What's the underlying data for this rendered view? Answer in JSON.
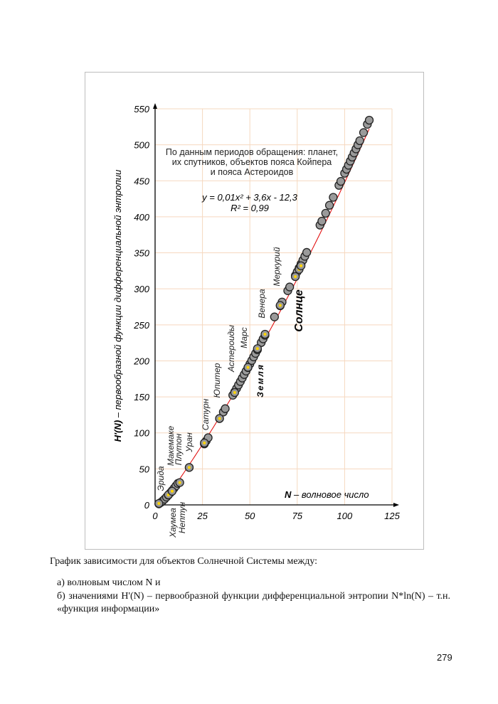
{
  "chart_data": {
    "type": "scatter",
    "title": "",
    "xlabel_bold": "N",
    "xlabel": " – волновое число",
    "ylabel_bold": "H'(N)",
    "ylabel": " – первообразной функции дифференциальной энтропии",
    "xlim": [
      0,
      125
    ],
    "ylim": [
      0,
      550
    ],
    "xticks": [
      0,
      25,
      50,
      75,
      100,
      125
    ],
    "yticks": [
      0,
      50,
      100,
      150,
      200,
      250,
      300,
      350,
      400,
      450,
      500,
      550
    ],
    "grid": true,
    "note_lines": [
      "По данным периодов обращения: планет,",
      "их спутников, объектов пояса Койпера",
      "и пояса Астероидов"
    ],
    "equation": "y = 0,01x² + 3,6x - 12,3",
    "r_squared": "R² = 0,99",
    "trendline": {
      "a": 0.01,
      "b": 3.6,
      "c": -12.3,
      "color": "#e00000"
    },
    "colors": {
      "point_fill": "#9a9a9a",
      "point_stroke": "#222222",
      "highlight": "#ffd400",
      "grid": "#f6d8bf"
    },
    "points": [
      [
        2,
        1.4
      ],
      [
        3,
        3.3
      ],
      [
        4,
        5.5
      ],
      [
        5,
        8.0
      ],
      [
        6,
        10.8
      ],
      [
        7,
        13.6
      ],
      [
        8,
        16.6
      ],
      [
        9,
        19.8
      ],
      [
        10,
        23.0
      ],
      [
        11,
        26.4
      ],
      [
        12,
        29.8
      ],
      [
        18,
        52.0
      ],
      [
        26,
        84.7
      ],
      [
        27,
        89.0
      ],
      [
        28,
        93.3
      ],
      [
        34,
        119.9
      ],
      [
        36,
        129.0
      ],
      [
        37,
        133.6
      ],
      [
        41,
        152.3
      ],
      [
        42,
        157.0
      ],
      [
        43,
        161.7
      ],
      [
        44,
        166.5
      ],
      [
        45,
        171.3
      ],
      [
        46,
        176.1
      ],
      [
        47,
        181.0
      ],
      [
        48,
        185.8
      ],
      [
        49,
        190.7
      ],
      [
        50,
        195.6
      ],
      [
        51,
        200.5
      ],
      [
        52,
        205.5
      ],
      [
        53,
        210.4
      ],
      [
        54,
        215.4
      ],
      [
        56,
        225.4
      ],
      [
        57,
        230.5
      ],
      [
        58,
        235.5
      ],
      [
        63,
        261.0
      ],
      [
        66,
        276.5
      ],
      [
        67,
        281.7
      ],
      [
        70,
        297.4
      ],
      [
        71,
        302.6
      ],
      [
        74,
        318.5
      ],
      [
        75,
        323.8
      ],
      [
        76,
        329.1
      ],
      [
        77,
        334.5
      ],
      [
        78,
        339.8
      ],
      [
        79,
        345.2
      ],
      [
        80,
        350.6
      ],
      [
        87,
        388.5
      ],
      [
        88,
        394.0
      ],
      [
        90,
        405.0
      ],
      [
        92,
        416.0
      ],
      [
        94,
        427.1
      ],
      [
        97,
        443.7
      ],
      [
        98,
        449.3
      ],
      [
        100,
        460.5
      ],
      [
        101,
        466.1
      ],
      [
        102,
        471.7
      ],
      [
        103,
        477.4
      ],
      [
        104,
        483.0
      ],
      [
        105,
        488.7
      ],
      [
        106,
        494.3
      ],
      [
        107,
        500.0
      ],
      [
        108,
        505.7
      ],
      [
        110,
        517.0
      ],
      [
        112,
        528.5
      ],
      [
        113,
        534.2
      ]
    ],
    "highlighted_points": [
      [
        2,
        2
      ],
      [
        7,
        14
      ],
      [
        9,
        19
      ],
      [
        13,
        31
      ],
      [
        18,
        52
      ],
      [
        26,
        86
      ],
      [
        34,
        120
      ],
      [
        42,
        156
      ],
      [
        49,
        191
      ],
      [
        54,
        217
      ],
      [
        58,
        237
      ],
      [
        66,
        277
      ],
      [
        74,
        317
      ],
      [
        76,
        327
      ],
      [
        77,
        332
      ]
    ],
    "annotations": [
      "Эрида",
      "Хаумеа",
      "Нептун",
      "Макемаке",
      "Плутон",
      "Уран",
      "Сатурн",
      "Юпитер",
      "Астероиды",
      "Марс",
      "Земля",
      "Венера",
      "Меркурий",
      "Солнце"
    ]
  },
  "caption": "График зависимости для объектов Солнечной Системы между:",
  "list": [
    "а)   волновым числом N и",
    "б) значениями H'(N) – первообразной функции дифференциальной энтропии N*ln(N) – т.н. «функция информации»"
  ],
  "page_number": "279"
}
